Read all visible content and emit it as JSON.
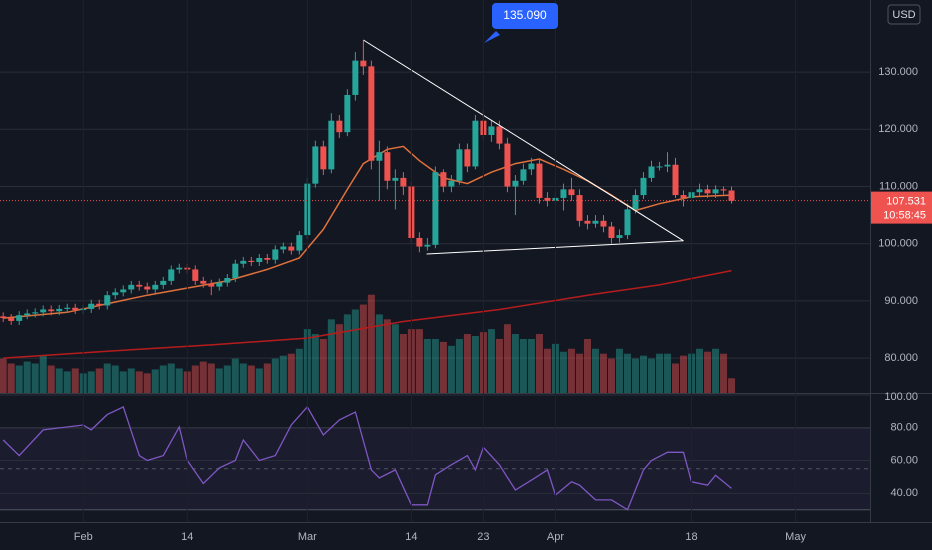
{
  "chart_data": [
    {
      "type": "candlestick",
      "x": [
        22,
        23,
        24,
        25,
        26,
        27,
        28,
        29,
        30,
        31,
        32,
        33,
        34,
        35,
        36,
        37,
        38,
        39,
        40,
        41,
        42,
        43,
        44,
        45,
        46,
        47,
        48,
        49,
        50,
        51,
        52,
        53,
        54,
        55,
        56,
        57,
        58,
        59,
        60,
        61,
        62,
        63,
        64,
        65,
        66,
        67,
        68,
        69,
        70,
        71,
        72,
        73,
        74,
        75,
        76,
        77,
        78,
        79,
        80,
        81,
        82,
        83,
        84,
        85,
        86,
        87,
        88,
        89,
        90,
        91,
        92,
        93,
        94,
        95,
        96,
        97,
        98,
        99,
        100,
        101,
        102,
        103,
        104,
        105,
        106,
        107,
        108,
        109,
        110,
        111,
        112,
        113
      ],
      "open": [
        87.3,
        87.0,
        86.5,
        87.5,
        87.8,
        88.0,
        88.5,
        88.2,
        88.6,
        88.8,
        88.4,
        88.6,
        89.5,
        89.2,
        91.0,
        91.5,
        92.0,
        92.8,
        92.5,
        92.0,
        92.8,
        93.5,
        95.5,
        95.8,
        95.5,
        93.5,
        93.0,
        92.5,
        93.2,
        94.0,
        96.5,
        97.0,
        96.8,
        97.5,
        97.2,
        99.0,
        99.5,
        98.8,
        101.5,
        110.5,
        117.0,
        113.0,
        121.5,
        119.5,
        126.0,
        132.0,
        131.0,
        114.5,
        116.0,
        111.0,
        111.5,
        110.0,
        101.0,
        99.5,
        99.8,
        112.5,
        110.0,
        111.0,
        116.5,
        113.5,
        121.5,
        119.0,
        120.5,
        117.5,
        110.0,
        111.0,
        113.0,
        114.0,
        108.0,
        107.5,
        108.0,
        109.5,
        108.5,
        104.0,
        103.5,
        104.0,
        103.0,
        101.0,
        101.5,
        106.0,
        108.5,
        111.5,
        113.5,
        113.5,
        113.8,
        108.5,
        108.0,
        109.0,
        109.5,
        108.8,
        109.5,
        109.3
      ],
      "high": [
        88.0,
        87.7,
        88.2,
        88.5,
        88.7,
        89.2,
        89.2,
        89.3,
        89.5,
        89.5,
        89.3,
        90.2,
        90.2,
        91.7,
        92.2,
        92.7,
        93.5,
        93.5,
        93.2,
        93.5,
        94.2,
        96.2,
        96.5,
        96.5,
        96.2,
        94.2,
        93.7,
        93.9,
        94.7,
        97.2,
        97.7,
        97.7,
        98.2,
        98.2,
        99.7,
        100.2,
        100.2,
        102.2,
        111.5,
        118.0,
        118.0,
        122.8,
        122.5,
        127.0,
        133.5,
        135.5,
        132.0,
        118.0,
        117.0,
        113.0,
        112.5,
        110.8,
        102.0,
        101.0,
        113.5,
        113.0,
        112.0,
        117.5,
        117.5,
        122.5,
        123.5,
        121.5,
        121.5,
        118.5,
        112.0,
        114.0,
        115.0,
        114.8,
        109.0,
        109.0,
        110.5,
        111.5,
        109.5,
        105.0,
        105.0,
        105.0,
        103.8,
        102.5,
        107.0,
        109.5,
        112.5,
        114.5,
        114.3,
        116.0,
        115.0,
        109.3,
        110.0,
        110.5,
        110.3,
        110.2,
        110.0,
        110.0
      ],
      "low": [
        86.3,
        85.8,
        85.8,
        86.8,
        87.1,
        87.3,
        87.5,
        87.5,
        87.9,
        87.7,
        87.7,
        87.9,
        88.5,
        88.5,
        90.3,
        90.8,
        91.3,
        91.8,
        91.3,
        91.3,
        92.1,
        92.8,
        94.8,
        94.8,
        92.8,
        92.3,
        91.0,
        91.8,
        92.5,
        93.3,
        95.8,
        96.1,
        96.1,
        96.5,
        96.5,
        98.3,
        98.1,
        98.1,
        100.8,
        109.8,
        112.0,
        112.3,
        118.5,
        118.8,
        125.0,
        129.5,
        113.0,
        107.5,
        109.5,
        106.0,
        108.5,
        100.0,
        98.5,
        98.8,
        99.2,
        109.0,
        109.0,
        110.3,
        112.5,
        113.0,
        118.0,
        117.8,
        116.5,
        109.0,
        105.0,
        110.3,
        112.0,
        107.0,
        106.5,
        106.8,
        105.8,
        107.5,
        103.0,
        102.5,
        102.8,
        102.0,
        100.0,
        100.2,
        100.8,
        105.3,
        107.8,
        110.8,
        112.8,
        112.5,
        108.0,
        106.5,
        107.3,
        108.3,
        108.0,
        108.0,
        108.6,
        107.0
      ],
      "close": [
        87.0,
        86.5,
        87.5,
        87.8,
        88.0,
        88.5,
        88.2,
        88.6,
        88.8,
        88.4,
        88.6,
        89.5,
        89.2,
        91.0,
        91.5,
        92.0,
        92.8,
        92.5,
        92.0,
        92.8,
        93.5,
        95.5,
        95.8,
        95.5,
        93.5,
        93.0,
        92.5,
        93.2,
        94.0,
        96.5,
        97.0,
        96.8,
        97.5,
        97.2,
        99.0,
        99.5,
        98.8,
        101.5,
        110.5,
        117.0,
        113.0,
        121.5,
        119.5,
        126.0,
        132.0,
        131.0,
        114.5,
        116.0,
        111.0,
        111.5,
        110.0,
        101.0,
        99.5,
        99.8,
        112.5,
        110.0,
        111.0,
        116.5,
        113.5,
        121.5,
        119.0,
        120.5,
        117.5,
        110.0,
        111.0,
        113.0,
        114.0,
        108.0,
        107.5,
        108.0,
        109.5,
        108.5,
        104.0,
        103.5,
        104.0,
        103.0,
        101.0,
        101.5,
        106.0,
        108.5,
        111.5,
        113.5,
        113.5,
        113.8,
        108.5,
        108.0,
        109.0,
        109.5,
        108.8,
        109.5,
        109.3,
        107.5
      ],
      "up_color": "#26a69a",
      "down_color": "#ef5350",
      "xlim": [
        21.6,
        130.3
      ],
      "ylim": [
        73.9,
        142.6
      ],
      "yticks": [
        {
          "value": 80,
          "label": "80.000"
        },
        {
          "value": 90,
          "label": "90.000"
        },
        {
          "value": 100,
          "label": "100.000"
        },
        {
          "value": 110,
          "label": "110.000"
        },
        {
          "value": 120,
          "label": "120.000"
        },
        {
          "value": 130,
          "label": "130.000"
        }
      ],
      "grid": true,
      "currency": "USD",
      "last_price": 107.531,
      "countdown": "10:58:45",
      "annotation": {
        "value": 135.09,
        "label": "135.090"
      },
      "overlays": [
        {
          "color": "#e0703c",
          "x": [
            22,
            30,
            40,
            50,
            55,
            59,
            62,
            65,
            67,
            70,
            72,
            74,
            77,
            80,
            83,
            86,
            89,
            92,
            95,
            98,
            101,
            104,
            108,
            113
          ],
          "values": [
            87.0,
            88.0,
            91.0,
            93.5,
            95.5,
            97.5,
            102.5,
            109.5,
            114.0,
            116.5,
            117.0,
            114.5,
            111.5,
            110.5,
            112.5,
            114.0,
            114.8,
            113.0,
            111.0,
            108.5,
            105.8,
            107.0,
            108.2,
            108.5
          ]
        },
        {
          "color": "#b71c1c",
          "x": [
            22,
            35,
            48,
            60,
            72,
            84,
            96,
            104,
            113
          ],
          "values": [
            80.0,
            81.2,
            82.3,
            83.5,
            86.4,
            88.5,
            91.2,
            92.8,
            95.3
          ]
        }
      ],
      "drawings": [
        {
          "color": "#ffffff",
          "x": [
            67,
            107
          ],
          "y": [
            135.6,
            100.5
          ]
        },
        {
          "color": "#ffffff",
          "x": [
            74.9,
            107
          ],
          "y": [
            98.2,
            100.5
          ]
        }
      ]
    },
    {
      "type": "bar",
      "x": [
        22,
        23,
        24,
        25,
        26,
        27,
        28,
        29,
        30,
        31,
        32,
        33,
        34,
        35,
        36,
        37,
        38,
        39,
        40,
        41,
        42,
        43,
        44,
        45,
        46,
        47,
        48,
        49,
        50,
        51,
        52,
        53,
        54,
        55,
        56,
        57,
        58,
        59,
        60,
        61,
        62,
        63,
        64,
        65,
        66,
        67,
        68,
        69,
        70,
        71,
        72,
        73,
        74,
        75,
        76,
        77,
        78,
        79,
        80,
        81,
        82,
        83,
        84,
        85,
        86,
        87,
        88,
        89,
        90,
        91,
        92,
        93,
        94,
        95,
        96,
        97,
        98,
        99,
        100,
        101,
        102,
        103,
        104,
        105,
        106,
        107,
        108,
        109,
        110,
        111,
        112,
        113
      ],
      "values": [
        35,
        30,
        28,
        32,
        30,
        38,
        28,
        25,
        22,
        25,
        20,
        22,
        25,
        30,
        28,
        22,
        25,
        22,
        20,
        24,
        28,
        30,
        25,
        22,
        28,
        32,
        30,
        25,
        28,
        35,
        30,
        28,
        25,
        30,
        35,
        38,
        40,
        45,
        65,
        60,
        55,
        75,
        70,
        80,
        85,
        90,
        100,
        80,
        75,
        70,
        60,
        65,
        65,
        55,
        55,
        52,
        48,
        55,
        60,
        58,
        62,
        65,
        55,
        70,
        60,
        55,
        55,
        60,
        45,
        50,
        42,
        45,
        40,
        55,
        45,
        40,
        35,
        45,
        40,
        35,
        38,
        35,
        40,
        40,
        30,
        38,
        40,
        45,
        42,
        45,
        40,
        15
      ],
      "up_color": "#26a69a",
      "down_color": "#ef5350",
      "ylim": [
        0,
        400
      ]
    },
    {
      "type": "line",
      "x": [
        22,
        24,
        27,
        32,
        33,
        35,
        37,
        39,
        40,
        42,
        44,
        45,
        47,
        49,
        51,
        52,
        54,
        56,
        58,
        60,
        62,
        64,
        66,
        68,
        69,
        71,
        73,
        75,
        76,
        78,
        80,
        81,
        82,
        84,
        86,
        88,
        90,
        91,
        93,
        94,
        96,
        98,
        100,
        102,
        103,
        105,
        107,
        108,
        110,
        111,
        113
      ],
      "values": [
        72.5,
        63,
        78.7,
        81.7,
        78.7,
        88,
        92.7,
        63,
        60,
        63,
        80.5,
        60,
        46,
        55.5,
        60,
        72.5,
        60,
        63,
        81.7,
        92.7,
        75.6,
        84.8,
        89.6,
        54.3,
        49.4,
        54.3,
        33,
        33,
        51.3,
        57.4,
        63,
        54.3,
        68,
        57.4,
        42,
        48,
        54.3,
        39,
        47,
        45,
        36,
        36,
        30,
        54.3,
        60,
        65,
        65,
        47,
        45,
        51,
        43
      ],
      "color": "#7e57c2",
      "xlim": [
        21.6,
        130.3
      ],
      "ylim": [
        22.5,
        101.2
      ],
      "yticks": [
        {
          "value": 40,
          "label": "40.00"
        },
        {
          "value": 60,
          "label": "60.00"
        },
        {
          "value": 80,
          "label": "80.00"
        },
        {
          "value": 100,
          "label": "100.00"
        }
      ],
      "band": [
        30,
        80
      ],
      "xticks": [
        {
          "value": 32,
          "label": "Feb"
        },
        {
          "value": 45,
          "label": "14"
        },
        {
          "value": 60,
          "label": "Mar"
        },
        {
          "value": 73,
          "label": "14"
        },
        {
          "value": 82,
          "label": "23"
        },
        {
          "value": 91,
          "label": "Apr"
        },
        {
          "value": 108,
          "label": "18"
        },
        {
          "value": 121,
          "label": "May"
        }
      ]
    }
  ]
}
